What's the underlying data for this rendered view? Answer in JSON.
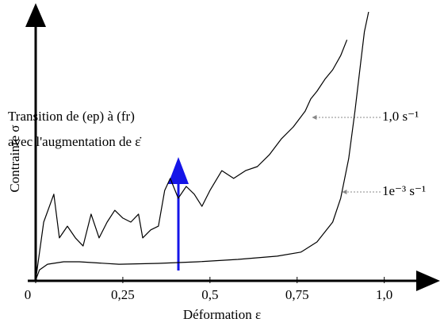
{
  "chart_data": {
    "type": "line",
    "xlabel": "Déformation ε",
    "ylabel": "Contrainte σ",
    "annotations": [
      "Transition de (ep) à (fr)",
      "avec l'augmentation de ε̇"
    ],
    "xlim": [
      0,
      1.16
    ],
    "ylim": [
      0,
      1
    ],
    "xticks": [
      0,
      {
        "value": 0.25,
        "label": "0,25"
      },
      {
        "value": 0.5,
        "label": "0,5"
      },
      {
        "value": 0.75,
        "label": "0,75"
      },
      {
        "value": 1.0,
        "label": "1,0"
      }
    ],
    "series": [
      {
        "name": "1,0 s⁻¹",
        "color": "#000000",
        "x": [
          0,
          0.023,
          0.052,
          0.068,
          0.091,
          0.114,
          0.136,
          0.159,
          0.182,
          0.205,
          0.227,
          0.25,
          0.273,
          0.295,
          0.307,
          0.33,
          0.352,
          0.37,
          0.386,
          0.409,
          0.432,
          0.455,
          0.477,
          0.5,
          0.534,
          0.568,
          0.602,
          0.636,
          0.67,
          0.705,
          0.739,
          0.773,
          0.789,
          0.807,
          0.83,
          0.852,
          0.875,
          0.893
        ],
        "values": [
          0,
          0.216,
          0.32,
          0.157,
          0.201,
          0.157,
          0.127,
          0.246,
          0.157,
          0.216,
          0.26,
          0.231,
          0.216,
          0.246,
          0.157,
          0.187,
          0.201,
          0.334,
          0.379,
          0.305,
          0.349,
          0.32,
          0.275,
          0.334,
          0.408,
          0.379,
          0.408,
          0.423,
          0.467,
          0.527,
          0.571,
          0.63,
          0.675,
          0.704,
          0.749,
          0.784,
          0.837,
          0.896
        ]
      },
      {
        "name": "1e⁻³ s⁻¹",
        "color": "#000000",
        "x": [
          0,
          0.011,
          0.034,
          0.08,
          0.125,
          0.239,
          0.352,
          0.466,
          0.58,
          0.693,
          0.761,
          0.807,
          0.852,
          0.875,
          0.898,
          0.916,
          0.932,
          0.943,
          0.955
        ],
        "values": [
          0,
          0.038,
          0.059,
          0.068,
          0.068,
          0.059,
          0.062,
          0.068,
          0.077,
          0.089,
          0.104,
          0.142,
          0.216,
          0.305,
          0.453,
          0.63,
          0.808,
          0.926,
          1.0
        ]
      }
    ]
  }
}
